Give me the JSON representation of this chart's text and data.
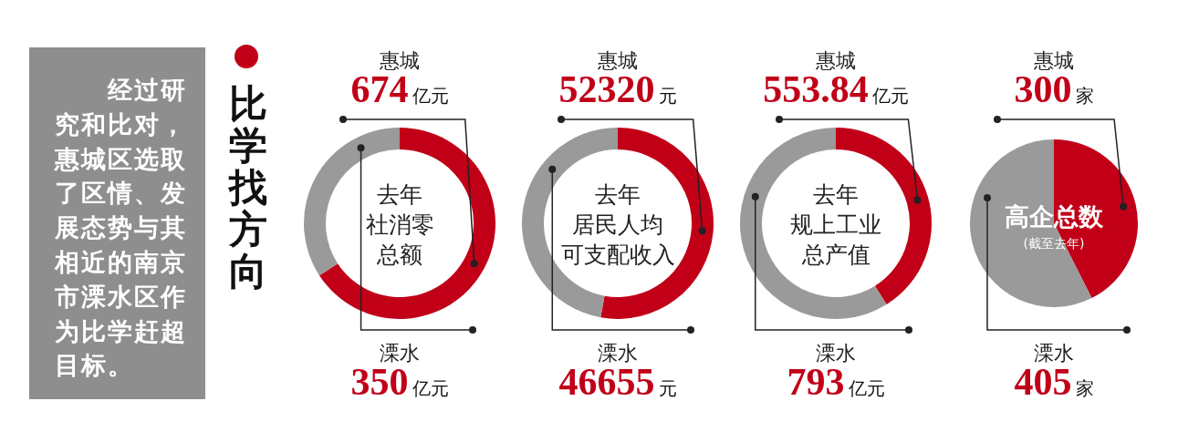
{
  "chart_data": [
    {
      "type": "other",
      "title": "比学找方向",
      "annotations": [
        "经过研究和比对，惠城区选取了区情、发展态势与其相近的南京市溧水区作为比学赶超目标。"
      ]
    },
    {
      "type": "donut",
      "annotations": [
        "去年",
        "社消零",
        "总额"
      ],
      "categories": [
        "惠城",
        "溧水"
      ],
      "values": [
        674,
        350
      ],
      "colors": [
        "#c10018",
        "#9a9a9a"
      ],
      "value_labels": [
        "674亿元",
        "350亿元"
      ]
    },
    {
      "type": "donut",
      "annotations": [
        "去年",
        "居民人均",
        "可支配收入"
      ],
      "categories": [
        "惠城",
        "溧水"
      ],
      "values": [
        52320,
        46655
      ],
      "colors": [
        "#c10018",
        "#9a9a9a"
      ],
      "value_labels": [
        "52320元",
        "46655元"
      ]
    },
    {
      "type": "donut",
      "annotations": [
        "去年",
        "规上工业",
        "总产值"
      ],
      "categories": [
        "惠城",
        "溧水"
      ],
      "values": [
        553.84,
        793
      ],
      "colors": [
        "#c10018",
        "#9a9a9a"
      ],
      "value_labels": [
        "553.84亿元",
        "793亿元"
      ]
    },
    {
      "type": "pie",
      "title": "高企总数",
      "subtitle": "(截至去年)",
      "categories": [
        "惠城",
        "溧水"
      ],
      "values": [
        300,
        405
      ],
      "colors": [
        "#c10018",
        "#9a9a9a"
      ],
      "value_labels": [
        "300家",
        "405家"
      ]
    }
  ]
}
